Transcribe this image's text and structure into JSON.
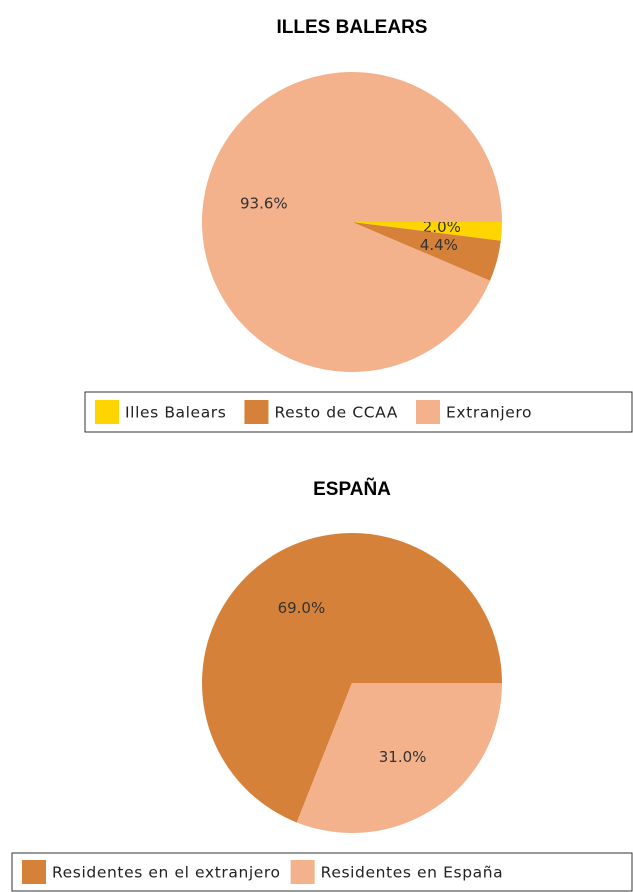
{
  "chart_data": [
    {
      "type": "pie",
      "title": "ILLES BALEARS",
      "direction": "clockwise",
      "categories": [
        "Illes Balears",
        "Resto de CCAA",
        "Extranjero"
      ],
      "values": [
        2.0,
        4.4,
        93.6
      ],
      "value_labels": [
        "2.0%",
        "4.4%",
        "93.6%"
      ],
      "colors": [
        "#ffd500",
        "#d6813a",
        "#f3b18c"
      ],
      "legend": "bottom"
    },
    {
      "type": "pie",
      "title": "ESPAÑA",
      "direction": "counterclockwise",
      "categories": [
        "Residentes en el extranjero",
        "Residentes en España"
      ],
      "values": [
        69.0,
        31.0
      ],
      "value_labels": [
        "69.0%",
        "31.0%"
      ],
      "colors": [
        "#d6813a",
        "#f3b18c"
      ],
      "legend": "bottom"
    }
  ]
}
